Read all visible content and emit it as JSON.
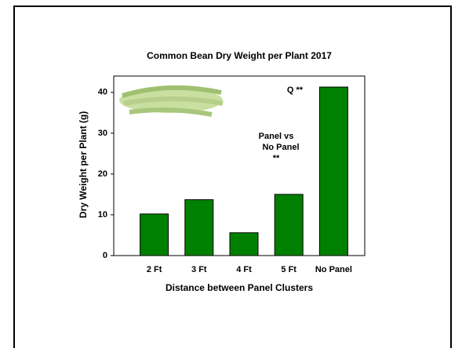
{
  "chart_data": {
    "type": "bar",
    "title": "Common Bean Dry Weight per Plant 2017",
    "x_label": "Distance between Panel Clusters",
    "y_label": "Dry Weight per Plant (g)",
    "categories": [
      "2 Ft",
      "3 Ft",
      "4 Ft",
      "5 Ft",
      "No Panel"
    ],
    "values": [
      10.2,
      13.7,
      5.6,
      15.0,
      41.3
    ],
    "color": "#008000",
    "ylim": [
      0,
      44
    ],
    "yticks": [
      0,
      10,
      20,
      30,
      40
    ],
    "annotations": [
      "Q **",
      "Panel vs",
      "No Panel",
      "**"
    ]
  }
}
